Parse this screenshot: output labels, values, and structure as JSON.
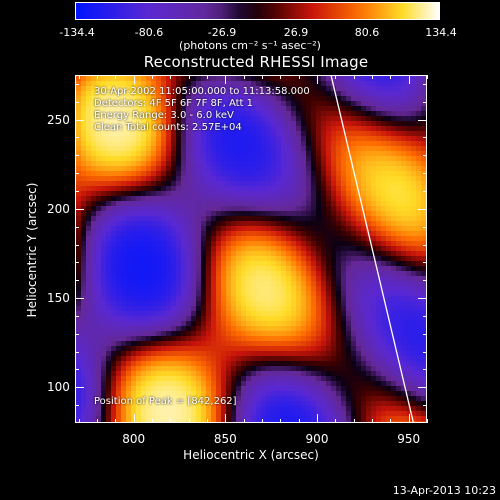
{
  "colorbar": {
    "ticks": [
      "-134.4",
      "-80.6",
      "-26.9",
      "26.9",
      "80.6",
      "134.4"
    ],
    "units": "(photons cm⁻² s⁻¹ asec⁻²)",
    "range": [
      -134.4,
      134.4
    ]
  },
  "title": "Reconstructed RHESSI Image",
  "annotations": {
    "time_range": "30-Apr-2002 11:05:00.000 to 11:13:58.000",
    "detectors": "Detectors: 4F 5F 6F 7F 8F, Att 1",
    "energy": "Energy Range: 3.0 - 6.0 keV",
    "clean": "Clean     Total counts: 2.57E+04",
    "peak": "Position of Peak = [842,262]"
  },
  "footer": {
    "timestamp": "13-Apr-2013 10:23"
  },
  "chart_data": {
    "type": "heatmap",
    "title": "Reconstructed RHESSI Image",
    "xlabel": "Heliocentric X (arcsec)",
    "ylabel": "Heliocentric Y (arcsec)",
    "xlim": [
      768,
      960
    ],
    "ylim": [
      80,
      275
    ],
    "x_ticks": [
      "800",
      "850",
      "900",
      "950"
    ],
    "y_ticks": [
      "100",
      "150",
      "200",
      "250"
    ],
    "x_tick_values": [
      800,
      850,
      900,
      950
    ],
    "y_tick_values": [
      100,
      150,
      200,
      250
    ],
    "peak_position": [
      842,
      262
    ],
    "colormap": "blue-purple-black-red-orange-yellow-white",
    "limb_line": [
      [
        908,
        275
      ],
      [
        953,
        80
      ]
    ]
  }
}
